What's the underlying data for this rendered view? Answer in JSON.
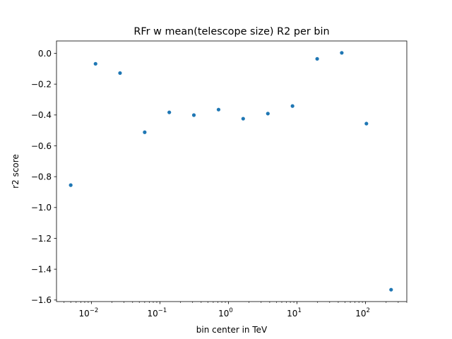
{
  "chart_data": {
    "type": "scatter",
    "title": "RFr w mean(telescope size) R2 per bin",
    "xlabel": "bin center in TeV",
    "ylabel": "r2 score",
    "xscale": "log",
    "xlim": [
      0.0031,
      400
    ],
    "ylim": [
      -1.61,
      0.08
    ],
    "grid": false,
    "marker_color": "#1f77b4",
    "x_ticks": [
      {
        "value": 0.01,
        "base": "10",
        "exp": "−2"
      },
      {
        "value": 0.1,
        "base": "10",
        "exp": "−1"
      },
      {
        "value": 1,
        "base": "10",
        "exp": "0"
      },
      {
        "value": 10,
        "base": "10",
        "exp": "1"
      },
      {
        "value": 100,
        "base": "10",
        "exp": "2"
      }
    ],
    "y_ticks": [
      {
        "value": 0.0,
        "label": "0.0"
      },
      {
        "value": -0.2,
        "label": "−0.2"
      },
      {
        "value": -0.4,
        "label": "−0.4"
      },
      {
        "value": -0.6,
        "label": "−0.6"
      },
      {
        "value": -0.8,
        "label": "−0.8"
      },
      {
        "value": -1.0,
        "label": "−1.0"
      },
      {
        "value": -1.2,
        "label": "−1.2"
      },
      {
        "value": -1.4,
        "label": "−1.4"
      },
      {
        "value": -1.6,
        "label": "−1.6"
      }
    ],
    "x": [
      0.005,
      0.0115,
      0.0262,
      0.06,
      0.137,
      0.313,
      0.717,
      1.64,
      3.76,
      8.6,
      19.7,
      45.0,
      103,
      236
    ],
    "y": [
      -0.855,
      -0.068,
      -0.128,
      -0.512,
      -0.383,
      -0.401,
      -0.365,
      -0.424,
      -0.391,
      -0.342,
      -0.036,
      0.003,
      -0.456,
      -1.533
    ]
  }
}
